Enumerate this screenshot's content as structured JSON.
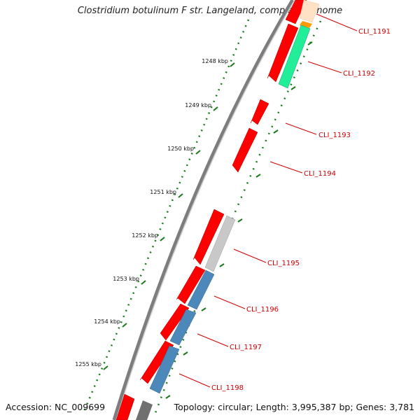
{
  "title": "Clostridium botulinum F str. Langeland, complete genome",
  "footer": {
    "accession": "Accession: NC_009699",
    "summary": "Topology: circular; Length: 3,995,387 bp; Genes: 3,781"
  },
  "scale_labels": [
    "1248 kbp",
    "1249 kbp",
    "1250 kbp",
    "1251 kbp",
    "1252 kbp",
    "1253 kbp",
    "1254 kbp",
    "1255 kbp"
  ],
  "gene_labels": [
    "CLI_1191",
    "CLI_1192",
    "CLI_1193",
    "CLI_1194",
    "CLI_1195",
    "CLI_1196",
    "CLI_1197",
    "CLI_1198"
  ],
  "colors": {
    "cds": "#ff0000",
    "label": "#cc0000",
    "tick": "#1a7a1a",
    "backbone": "#888888",
    "feature_orange": "#ff9900",
    "feature_peach": "#ffddbb",
    "feature_green": "#22ee99",
    "feature_gray": "#c8c8c8",
    "feature_blue": "#4d88bb",
    "feature_dark": "#707070"
  }
}
